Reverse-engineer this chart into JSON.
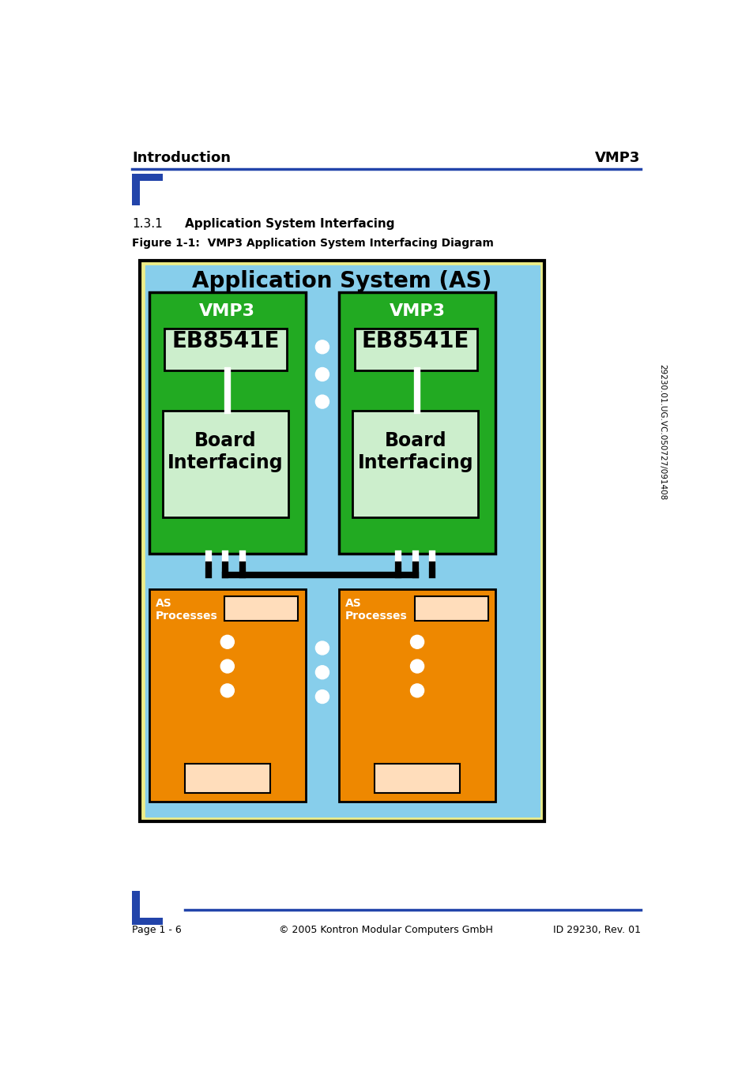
{
  "page_title_left": "Introduction",
  "page_title_right": "VMP3",
  "section_num": "1.3.1",
  "section_title": "Application System Interfacing",
  "figure_label": "Figure 1-1:  VMP3 Application System Interfacing Diagram",
  "diagram_title": "Application System (AS)",
  "vmp3_label": "VMP3",
  "eb_label": "EB8541E",
  "board_label": "Board\nInterfacing",
  "as_proc_label": "AS\nProcesses",
  "footer_left": "Page 1 - 6",
  "footer_center": "© 2005 Kontron Modular Computers GmbH",
  "footer_right": "ID 29230, Rev. 01",
  "side_text": "29230.01.UG.VC.050727/091408",
  "color_bg": "#87CEEB",
  "color_outer_border": "#EEEE88",
  "color_green_vmp3": "#22AA22",
  "color_lightgreen_box": "#CCEECC",
  "color_orange_as": "#EE8800",
  "color_peach_box": "#FFDDBB",
  "color_white": "#FFFFFF",
  "color_black": "#000000",
  "color_blue_line": "#2244AA",
  "color_dark_blue_rect": "#2244AA",
  "header_fontsize": 13,
  "section_fontsize": 11,
  "figure_label_fontsize": 10,
  "diagram_title_fontsize": 20,
  "vmp3_label_fontsize": 16,
  "eb_label_fontsize": 20,
  "board_label_fontsize": 17,
  "as_proc_label_fontsize": 10,
  "footer_fontsize": 9
}
